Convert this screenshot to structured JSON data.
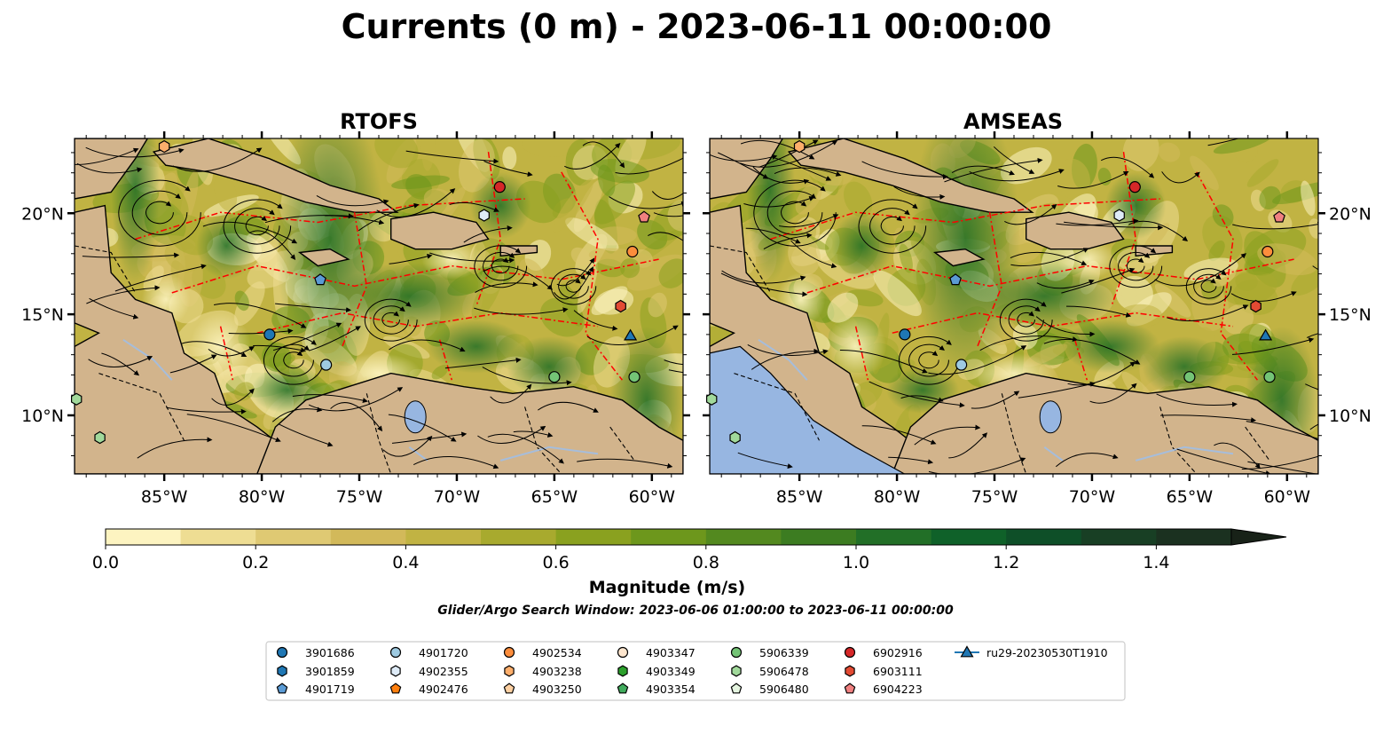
{
  "figure": {
    "title": "Currents (0 m) - 2023-06-11 00:00:00",
    "search_window": "Glider/Argo Search Window: 2023-06-06 01:00:00 to 2023-06-11 00:00:00"
  },
  "chart_data": [
    {
      "type": "heatmap",
      "title": "RTOFS",
      "x_ticks": [
        "85°W",
        "80°W",
        "75°W",
        "70°W",
        "65°W",
        "60°W"
      ],
      "x_tick_values": [
        -85,
        -80,
        -75,
        -70,
        -65,
        -60
      ],
      "y_ticks": [
        "10°N",
        "15°N",
        "20°N"
      ],
      "y_tick_values": [
        10,
        15,
        20
      ],
      "xlim": [
        -89.6,
        -58.4
      ],
      "ylim": [
        7.1,
        23.7
      ],
      "y_tick_side": "left",
      "markers": [
        {
          "id": "3901686",
          "lon": -79.6,
          "lat": 14.0
        },
        {
          "id": "4901719",
          "lon": -77.0,
          "lat": 16.7
        },
        {
          "id": "4901720",
          "lon": -76.7,
          "lat": 12.5
        },
        {
          "id": "4902355",
          "lon": -68.6,
          "lat": 19.9
        },
        {
          "id": "4902534",
          "lon": -61.0,
          "lat": 18.1
        },
        {
          "id": "4903238",
          "lon": -85.0,
          "lat": 23.3
        },
        {
          "id": "5906339",
          "lon": -65.0,
          "lat": 11.9
        },
        {
          "id": "5906339",
          "lon": -60.9,
          "lat": 11.9
        },
        {
          "id": "5906478",
          "lon": -89.5,
          "lat": 10.8
        },
        {
          "id": "5906478",
          "lon": -88.3,
          "lat": 8.9
        },
        {
          "id": "6902916",
          "lon": -67.8,
          "lat": 21.3
        },
        {
          "id": "6903111",
          "lon": -61.6,
          "lat": 15.4
        },
        {
          "id": "6904223",
          "lon": -60.4,
          "lat": 19.8
        },
        {
          "id": "ru29-20230530T1910",
          "lon": -61.1,
          "lat": 13.9
        }
      ]
    },
    {
      "type": "heatmap",
      "title": "AMSEAS",
      "x_ticks": [
        "85°W",
        "80°W",
        "75°W",
        "70°W",
        "65°W",
        "60°W"
      ],
      "x_tick_values": [
        -85,
        -80,
        -75,
        -70,
        -65,
        -60
      ],
      "y_ticks": [
        "10°N",
        "15°N",
        "20°N"
      ],
      "y_tick_values": [
        10,
        15,
        20
      ],
      "xlim": [
        -89.6,
        -58.4
      ],
      "ylim": [
        7.1,
        23.7
      ],
      "y_tick_side": "right",
      "markers": [
        {
          "id": "3901686",
          "lon": -79.6,
          "lat": 14.0
        },
        {
          "id": "4901719",
          "lon": -77.0,
          "lat": 16.7
        },
        {
          "id": "4901720",
          "lon": -76.7,
          "lat": 12.5
        },
        {
          "id": "4902355",
          "lon": -68.6,
          "lat": 19.9
        },
        {
          "id": "4902534",
          "lon": -61.0,
          "lat": 18.1
        },
        {
          "id": "4903238",
          "lon": -85.0,
          "lat": 23.3
        },
        {
          "id": "5906339",
          "lon": -65.0,
          "lat": 11.9
        },
        {
          "id": "5906339",
          "lon": -60.9,
          "lat": 11.9
        },
        {
          "id": "5906478",
          "lon": -89.5,
          "lat": 10.8
        },
        {
          "id": "5906478",
          "lon": -88.3,
          "lat": 8.9
        },
        {
          "id": "6902916",
          "lon": -67.8,
          "lat": 21.3
        },
        {
          "id": "6903111",
          "lon": -61.6,
          "lat": 15.4
        },
        {
          "id": "6904223",
          "lon": -60.4,
          "lat": 19.8
        },
        {
          "id": "ru29-20230530T1910",
          "lon": -61.1,
          "lat": 13.9
        }
      ]
    }
  ],
  "colorbar": {
    "label": "Magnitude (m/s)",
    "min": 0.0,
    "max": 1.5,
    "extend": "max",
    "bounds": [
      0.0,
      0.1,
      0.2,
      0.3,
      0.4,
      0.5,
      0.6,
      0.7,
      0.8,
      0.9,
      1.0,
      1.1,
      1.2,
      1.3,
      1.4,
      1.5
    ],
    "colors": [
      "#fdf4c1",
      "#eedd93",
      "#dfc973",
      "#d2b95a",
      "#c1b343",
      "#a8aa2e",
      "#8aa11f",
      "#6d971c",
      "#53891f",
      "#3c7c21",
      "#226f27",
      "#0f6129",
      "#0e4f28",
      "#183f24",
      "#1b3120",
      "#182218"
    ],
    "tick_labels": [
      "0.0",
      "0.2",
      "0.4",
      "0.6",
      "0.8",
      "1.0",
      "1.2",
      "1.4"
    ],
    "tick_values": [
      0.0,
      0.2,
      0.4,
      0.6,
      0.8,
      1.0,
      1.2,
      1.4
    ]
  },
  "legend": {
    "placement": "bottom-center",
    "entries": [
      {
        "label": "3901686",
        "marker": "circle",
        "color": "#1f77b4"
      },
      {
        "label": "3901859",
        "marker": "hexagon",
        "color": "#1f77b4"
      },
      {
        "label": "4901719",
        "marker": "pentagon",
        "color": "#5b9bd5"
      },
      {
        "label": "4901720",
        "marker": "circle",
        "color": "#9ecae1"
      },
      {
        "label": "4902355",
        "marker": "hexagon",
        "color": "#deebf7"
      },
      {
        "label": "4902476",
        "marker": "pentagon",
        "color": "#ff7f0e"
      },
      {
        "label": "4902534",
        "marker": "circle",
        "color": "#fd8d3c"
      },
      {
        "label": "4903238",
        "marker": "hexagon",
        "color": "#fdae6b"
      },
      {
        "label": "4903250",
        "marker": "pentagon",
        "color": "#fdd0a2"
      },
      {
        "label": "4903347",
        "marker": "circle",
        "color": "#fee6ce"
      },
      {
        "label": "4903349",
        "marker": "hexagon",
        "color": "#2ca02c"
      },
      {
        "label": "4903354",
        "marker": "pentagon",
        "color": "#41ab5d"
      },
      {
        "label": "5906339",
        "marker": "circle",
        "color": "#74c476"
      },
      {
        "label": "5906478",
        "marker": "hexagon",
        "color": "#a1d99b"
      },
      {
        "label": "5906480",
        "marker": "pentagon",
        "color": "#e5f5e0"
      },
      {
        "label": "6902916",
        "marker": "circle",
        "color": "#d62728"
      },
      {
        "label": "6903111",
        "marker": "hexagon",
        "color": "#e34a33"
      },
      {
        "label": "6904223",
        "marker": "pentagon",
        "color": "#f08080"
      },
      {
        "label": "ru29-20230530T1910",
        "marker": "triangle",
        "color": "#1f77b4"
      }
    ]
  },
  "colors": {
    "land": "#d2b48c",
    "pacific_water": "#97b6e1",
    "rivers": "#a6bddb",
    "eez_lines": "#ff0000",
    "streamlines": "#000000"
  }
}
